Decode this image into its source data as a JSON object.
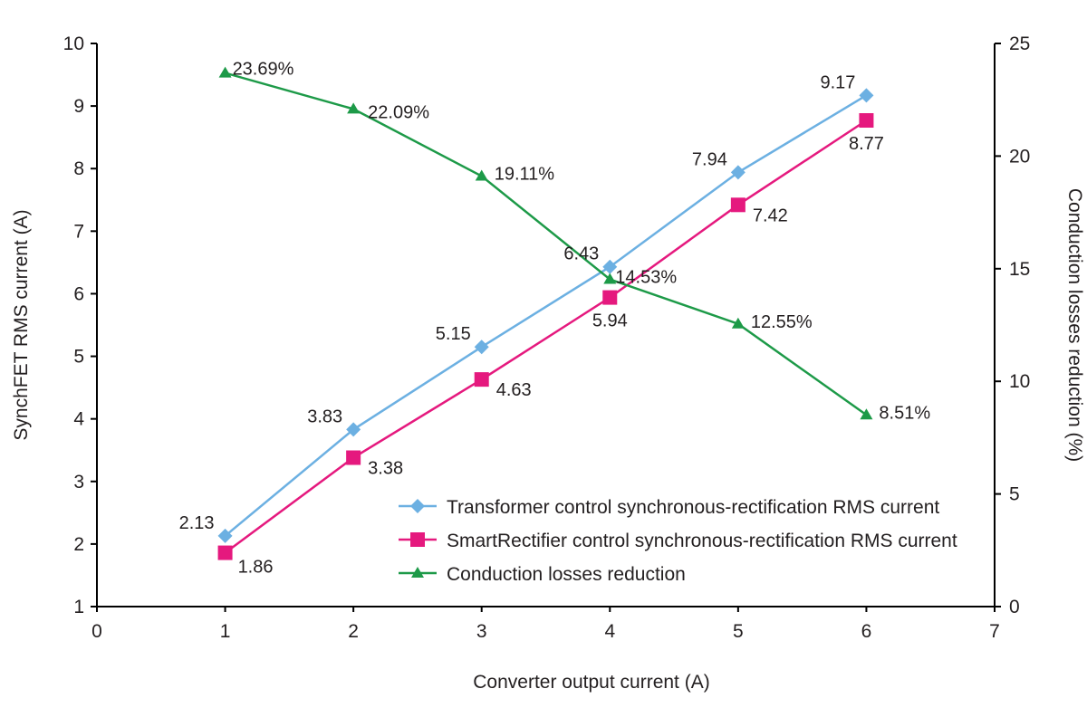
{
  "chart_data": {
    "type": "line",
    "x": [
      1,
      2,
      3,
      4,
      5,
      6
    ],
    "xlabel": "Converter output current (A)",
    "ylabel": "SynchFET RMS current (A)",
    "y2label": "Conduction losses reduction (%)",
    "xlim": [
      0,
      7
    ],
    "ylim": [
      1,
      10
    ],
    "y2lim": [
      0,
      25
    ],
    "xticks": [
      "0",
      "1",
      "2",
      "3",
      "4",
      "5",
      "6",
      "7"
    ],
    "yticks": [
      "1",
      "2",
      "3",
      "4",
      "5",
      "6",
      "7",
      "8",
      "9",
      "10"
    ],
    "y2ticks": [
      "0",
      "5",
      "10",
      "15",
      "20",
      "25"
    ],
    "grid": false,
    "legend_position": "bottom-right",
    "series": [
      {
        "name": "Transformer control synchronous-rectification RMS current",
        "axis": "left",
        "marker": "diamond",
        "color": "#6cb0e2",
        "values": [
          2.13,
          3.83,
          5.15,
          6.43,
          7.94,
          9.17
        ],
        "labels": [
          "2.13",
          "3.83",
          "5.15",
          "6.43",
          "7.94",
          "9.17"
        ]
      },
      {
        "name": "SmartRectifier control synchronous-rectification RMS current",
        "axis": "left",
        "marker": "square",
        "color": "#e5197e",
        "values": [
          1.86,
          3.38,
          4.63,
          5.94,
          7.42,
          8.77
        ],
        "labels": [
          "1.86",
          "3.38",
          "4.63",
          "5.94",
          "7.42",
          "8.77"
        ]
      },
      {
        "name": "Conduction losses reduction",
        "axis": "right",
        "marker": "triangle",
        "color": "#1d9a48",
        "values": [
          23.69,
          22.09,
          19.11,
          14.53,
          12.55,
          8.51
        ],
        "labels": [
          "23.69%",
          "22.09%",
          "19.11%",
          "14.53%",
          "12.55%",
          "8.51%"
        ]
      }
    ]
  }
}
